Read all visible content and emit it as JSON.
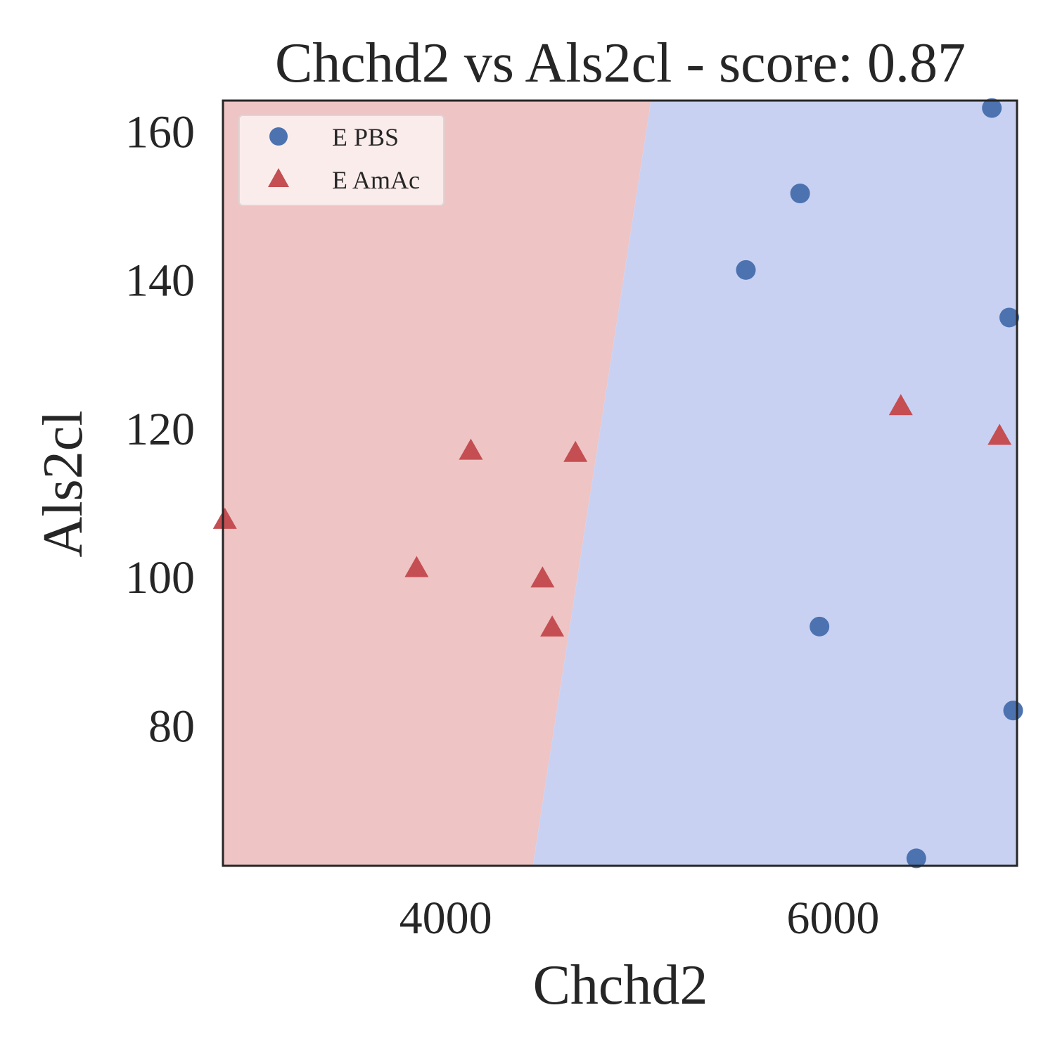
{
  "chart_data": {
    "type": "scatter",
    "title": "Chchd2 vs Als2cl - score: 0.87",
    "xlabel": "Chchd2",
    "ylabel": "Als2cl",
    "xlim": [
      2850,
      6950
    ],
    "ylim": [
      61,
      164
    ],
    "xticks": [
      {
        "value": 4000,
        "label": "4000"
      },
      {
        "value": 6000,
        "label": "6000"
      }
    ],
    "yticks": [
      {
        "value": 80,
        "label": "80"
      },
      {
        "value": 100,
        "label": "100"
      },
      {
        "value": 120,
        "label": "120"
      },
      {
        "value": 140,
        "label": "140"
      },
      {
        "value": 160,
        "label": "160"
      }
    ],
    "grid": false,
    "legend_position": "top-left",
    "decision_boundary": {
      "points": [
        [
          5060,
          164
        ],
        [
          4450,
          61
        ]
      ],
      "left_region_class": "E AmAc",
      "right_region_class": "E PBS"
    },
    "series": [
      {
        "name": "E PBS",
        "marker": "circle",
        "color": "#4c72b0",
        "region_color": "#c9d1f2",
        "points": [
          [
            6820,
            163
          ],
          [
            5830,
            151.5
          ],
          [
            5550,
            141.2
          ],
          [
            6910,
            134.8
          ],
          [
            5930,
            93.2
          ],
          [
            6930,
            81.9
          ],
          [
            6430,
            62
          ]
        ]
      },
      {
        "name": "E AmAc",
        "marker": "triangle",
        "color": "#c44e52",
        "region_color": "#eec4c4",
        "points": [
          [
            2860,
            107.5
          ],
          [
            3850,
            101
          ],
          [
            4130,
            116.8
          ],
          [
            4500,
            99.6
          ],
          [
            4550,
            93
          ],
          [
            4670,
            116.5
          ],
          [
            6350,
            122.8
          ],
          [
            6860,
            118.8
          ]
        ]
      }
    ]
  }
}
